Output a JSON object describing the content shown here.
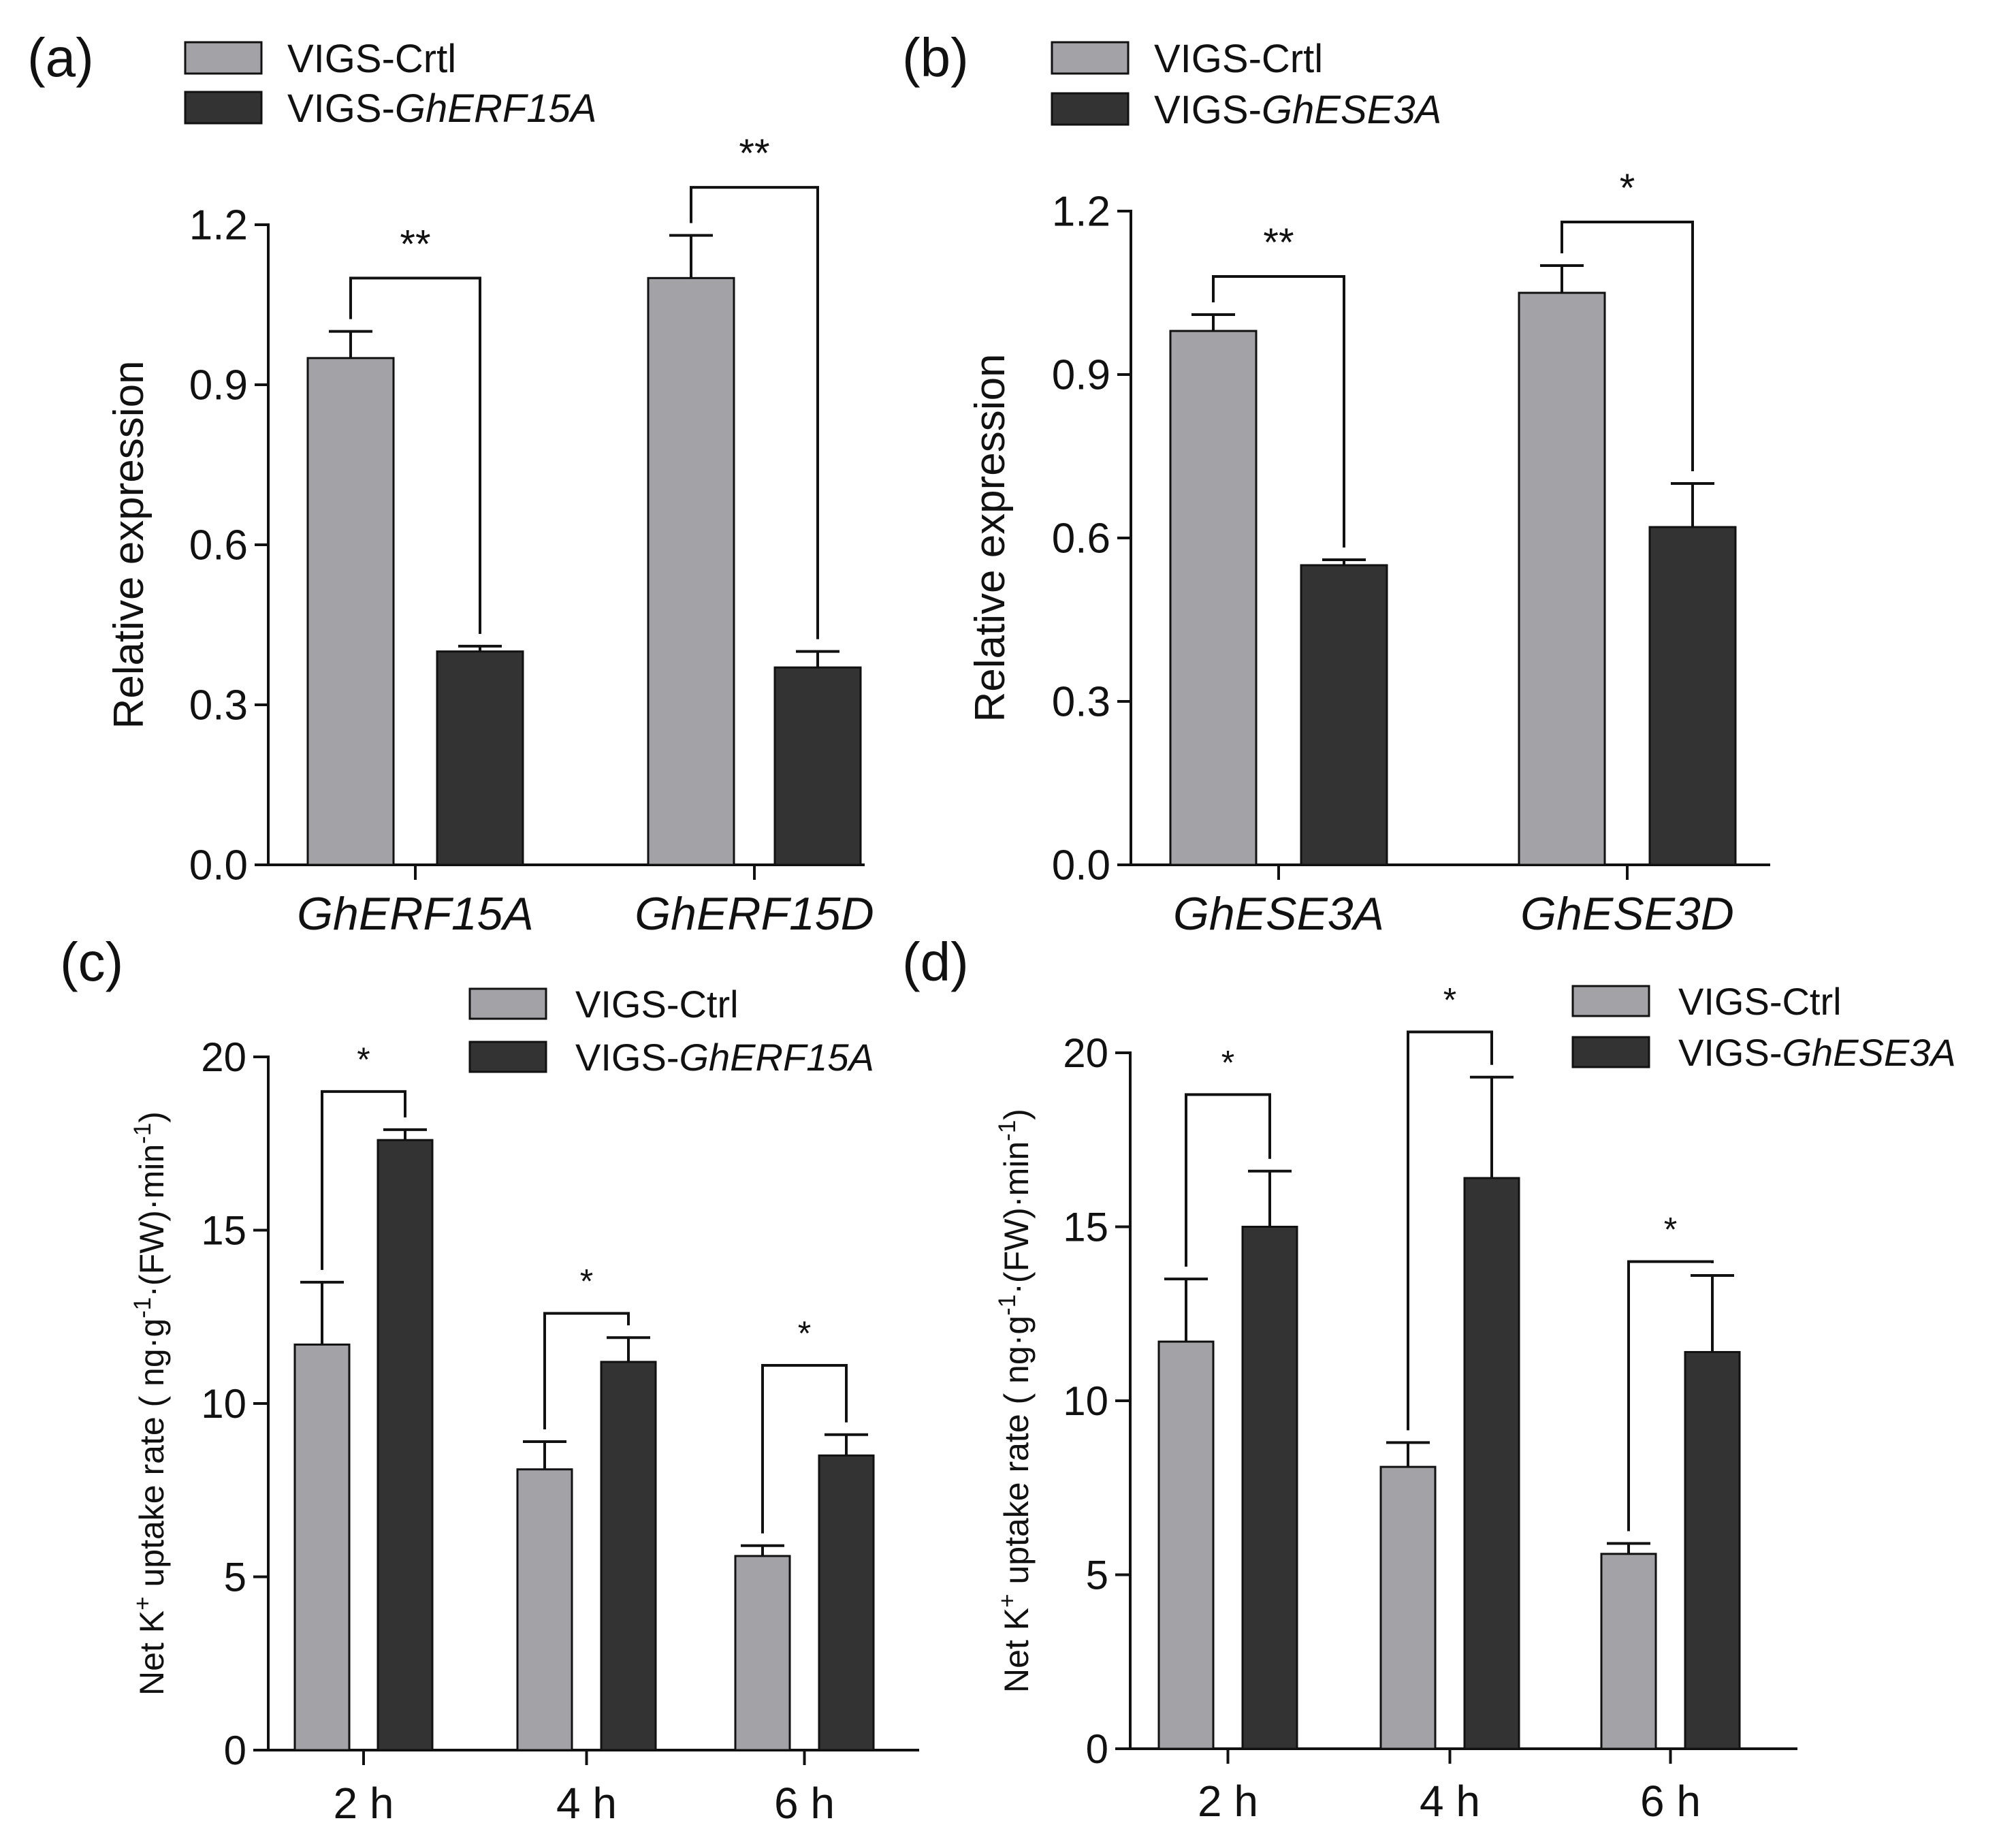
{
  "colors": {
    "control": "#a3a3a7",
    "treatment": "#333333"
  },
  "chart_data": [
    {
      "panel": "(a)",
      "type": "bar",
      "ylabel": "Relative expression",
      "ylim": [
        0,
        1.2
      ],
      "yticks": [
        "0.0",
        "0.3",
        "0.6",
        "0.9",
        "1.2"
      ],
      "italic_categories": true,
      "categories": [
        "GhERF15A",
        "GhERF15D"
      ],
      "series": [
        {
          "name": "VIGS-Crtl",
          "legend_prefix": "VIGS-Crtl",
          "legend_italic": "",
          "values": [
            0.95,
            1.1
          ],
          "errors": [
            0.05,
            0.08
          ]
        },
        {
          "name": "VIGS-GhERF15A",
          "legend_prefix": "VIGS-",
          "legend_italic": "GhERF15A",
          "values": [
            0.4,
            0.37
          ],
          "errors": [
            0.01,
            0.03
          ]
        }
      ],
      "significance": [
        "**",
        "**"
      ],
      "bracket_tops": [
        1.1,
        1.27
      ],
      "legend_position": "top-left"
    },
    {
      "panel": "(b)",
      "type": "bar",
      "ylabel": "Relative expression",
      "ylim": [
        0,
        1.2
      ],
      "yticks": [
        "0.0",
        "0.3",
        "0.6",
        "0.9",
        "1.2"
      ],
      "italic_categories": true,
      "categories": [
        "GhESE3A",
        "GhESE3D"
      ],
      "series": [
        {
          "name": "VIGS-Crtl",
          "legend_prefix": "VIGS-Crtl",
          "legend_italic": "",
          "values": [
            0.98,
            1.05
          ],
          "errors": [
            0.03,
            0.05
          ]
        },
        {
          "name": "VIGS-GhESE3A",
          "legend_prefix": "VIGS-",
          "legend_italic": "GhESE3A",
          "values": [
            0.55,
            0.62
          ],
          "errors": [
            0.01,
            0.08
          ]
        }
      ],
      "significance": [
        "**",
        "*"
      ],
      "bracket_tops": [
        1.08,
        1.18
      ],
      "legend_position": "top-left"
    },
    {
      "panel": "(c)",
      "type": "bar",
      "ylabel_parts": [
        "Net K",
        "+",
        " uptake rate ( ng·g",
        "-1",
        "·(FW)·min",
        "-1",
        ")"
      ],
      "ylim": [
        0,
        20
      ],
      "yticks": [
        "0",
        "5",
        "10",
        "15",
        "20"
      ],
      "italic_categories": false,
      "categories": [
        "2 h",
        "4 h",
        "6 h"
      ],
      "series": [
        {
          "name": "VIGS-Ctrl",
          "legend_prefix": "VIGS-Ctrl",
          "legend_italic": "",
          "values": [
            11.7,
            8.1,
            5.6
          ],
          "errors": [
            1.8,
            0.8,
            0.3
          ]
        },
        {
          "name": "VIGS-GhERF15A",
          "legend_prefix": "VIGS-",
          "legend_italic": "GhERF15A",
          "values": [
            17.6,
            11.2,
            8.5
          ],
          "errors": [
            0.3,
            0.7,
            0.6
          ]
        }
      ],
      "significance": [
        "*",
        "*",
        "*"
      ],
      "bracket_tops": [
        19.0,
        12.6,
        11.1
      ],
      "legend_position": "top-right"
    },
    {
      "panel": "(d)",
      "type": "bar",
      "ylabel_parts": [
        "Net K",
        "+",
        " uptake rate ( ng·g",
        "-1",
        "·(FW)·min",
        "-1",
        ")"
      ],
      "ylim": [
        0,
        20
      ],
      "yticks": [
        "0",
        "5",
        "10",
        "15",
        "20"
      ],
      "italic_categories": false,
      "categories": [
        "2 h",
        "4 h",
        "6 h"
      ],
      "series": [
        {
          "name": "VIGS-Ctrl",
          "legend_prefix": "VIGS-Ctrl",
          "legend_italic": "",
          "values": [
            11.7,
            8.1,
            5.6
          ],
          "errors": [
            1.8,
            0.7,
            0.3
          ]
        },
        {
          "name": "VIGS-GhESE3A",
          "legend_prefix": "VIGS-",
          "legend_italic": "GhESE3A",
          "values": [
            15.0,
            16.4,
            11.4
          ],
          "errors": [
            1.6,
            2.9,
            2.2
          ]
        }
      ],
      "significance": [
        "*",
        "*",
        "*"
      ],
      "bracket_tops": [
        18.8,
        20.6,
        14.0
      ],
      "legend_position": "top-right"
    }
  ]
}
